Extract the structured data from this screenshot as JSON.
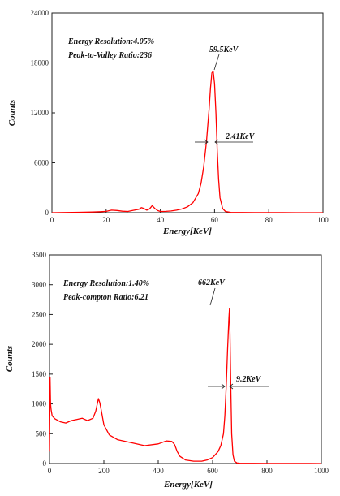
{
  "colors": {
    "series": "#ff0000",
    "axes": "#222222",
    "background": "#ffffff"
  },
  "chart_data": [
    {
      "type": "line",
      "title": "",
      "xlabel": "Energy[KeV]",
      "ylabel": "Counts",
      "xlim": [
        0,
        100
      ],
      "ylim": [
        0,
        24000
      ],
      "xticks": [
        0,
        20,
        40,
        60,
        80,
        100
      ],
      "yticks": [
        0,
        6000,
        12000,
        18000,
        24000
      ],
      "grid": false,
      "annotations": {
        "line1": "Energy Resolution:4.05%",
        "line2": "Peak-to-Valley Ratio:236",
        "peak_label": "59.5KeV",
        "fwhm_label": "2.41KeV"
      },
      "series": [
        {
          "x": [
            0,
            5,
            10,
            15,
            18,
            20,
            22,
            24,
            26,
            28,
            30,
            32,
            33,
            34,
            35,
            36,
            37,
            38,
            39,
            40,
            42,
            44,
            46,
            48,
            50,
            52,
            54,
            55,
            56,
            57,
            58,
            58.5,
            59,
            59.5,
            60,
            60.5,
            61,
            61.5,
            62,
            63,
            64,
            66,
            70,
            75,
            80,
            85,
            90,
            95,
            100
          ],
          "y": [
            0,
            20,
            50,
            80,
            120,
            160,
            300,
            260,
            180,
            150,
            280,
            400,
            600,
            500,
            300,
            450,
            850,
            500,
            250,
            150,
            160,
            200,
            300,
            450,
            700,
            1200,
            2300,
            3500,
            5500,
            8500,
            12500,
            15000,
            16800,
            17000,
            15500,
            12000,
            7500,
            4000,
            1800,
            500,
            150,
            40,
            20,
            10,
            5,
            5,
            3,
            2,
            0
          ]
        }
      ]
    },
    {
      "type": "line",
      "title": "",
      "xlabel": "Energy[KeV]",
      "ylabel": "Counts",
      "xlim": [
        0,
        1000
      ],
      "ylim": [
        0,
        3500
      ],
      "xticks": [
        0,
        200,
        400,
        600,
        800,
        1000
      ],
      "yticks": [
        0,
        500,
        1000,
        1500,
        2000,
        2500,
        3000,
        3500
      ],
      "grid": false,
      "annotations": {
        "line1": "Energy Resolution:1.40%",
        "line2": "Peak-compton Ratio:6.21",
        "peak_label": "662KeV",
        "fwhm_label": "9.2KeV"
      },
      "series": [
        {
          "x": [
            0,
            2,
            4,
            6,
            10,
            20,
            40,
            60,
            80,
            100,
            120,
            140,
            160,
            170,
            180,
            185,
            190,
            200,
            220,
            250,
            300,
            350,
            400,
            430,
            450,
            460,
            470,
            480,
            500,
            530,
            560,
            580,
            600,
            620,
            630,
            640,
            645,
            650,
            655,
            660,
            662,
            664,
            667,
            670,
            675,
            680,
            690,
            700,
            750,
            800,
            900,
            1000
          ],
          "y": [
            200,
            1450,
            1000,
            900,
            800,
            750,
            700,
            680,
            720,
            740,
            760,
            720,
            760,
            880,
            1090,
            1020,
            900,
            650,
            480,
            400,
            350,
            300,
            330,
            380,
            370,
            320,
            200,
            120,
            60,
            40,
            40,
            60,
            100,
            200,
            300,
            500,
            800,
            1300,
            1900,
            2450,
            2600,
            2200,
            1300,
            500,
            150,
            40,
            10,
            5,
            3,
            2,
            1,
            0
          ]
        }
      ]
    }
  ]
}
